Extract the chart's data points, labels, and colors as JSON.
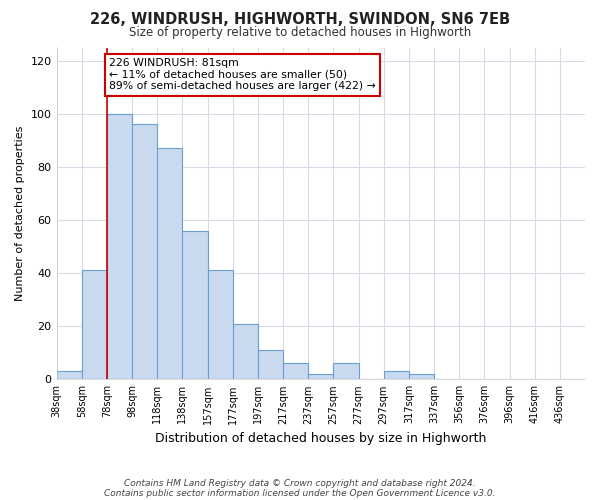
{
  "title": "226, WINDRUSH, HIGHWORTH, SWINDON, SN6 7EB",
  "subtitle": "Size of property relative to detached houses in Highworth",
  "xlabel": "Distribution of detached houses by size in Highworth",
  "ylabel": "Number of detached properties",
  "bar_labels": [
    "38sqm",
    "58sqm",
    "78sqm",
    "98sqm",
    "118sqm",
    "138sqm",
    "157sqm",
    "177sqm",
    "197sqm",
    "217sqm",
    "237sqm",
    "257sqm",
    "277sqm",
    "297sqm",
    "317sqm",
    "337sqm",
    "356sqm",
    "376sqm",
    "396sqm",
    "416sqm",
    "436sqm"
  ],
  "bar_values": [
    3,
    41,
    100,
    96,
    87,
    56,
    41,
    21,
    11,
    6,
    2,
    6,
    0,
    3,
    2,
    0,
    0,
    0,
    0,
    0,
    0
  ],
  "bar_color": "#c9d9ee",
  "bar_edge_color": "#6b9fcf",
  "vline_x_index": 2,
  "vline_color": "#cc0000",
  "annotation_text": "226 WINDRUSH: 81sqm\n← 11% of detached houses are smaller (50)\n89% of semi-detached houses are larger (422) →",
  "annotation_box_edge": "#cc0000",
  "annotation_box_face": "#ffffff",
  "ylim": [
    0,
    125
  ],
  "yticks": [
    0,
    20,
    40,
    60,
    80,
    100,
    120
  ],
  "grid_color": "#d5dce8",
  "background_color": "#ffffff",
  "footer_line1": "Contains HM Land Registry data © Crown copyright and database right 2024.",
  "footer_line2": "Contains public sector information licensed under the Open Government Licence v3.0."
}
